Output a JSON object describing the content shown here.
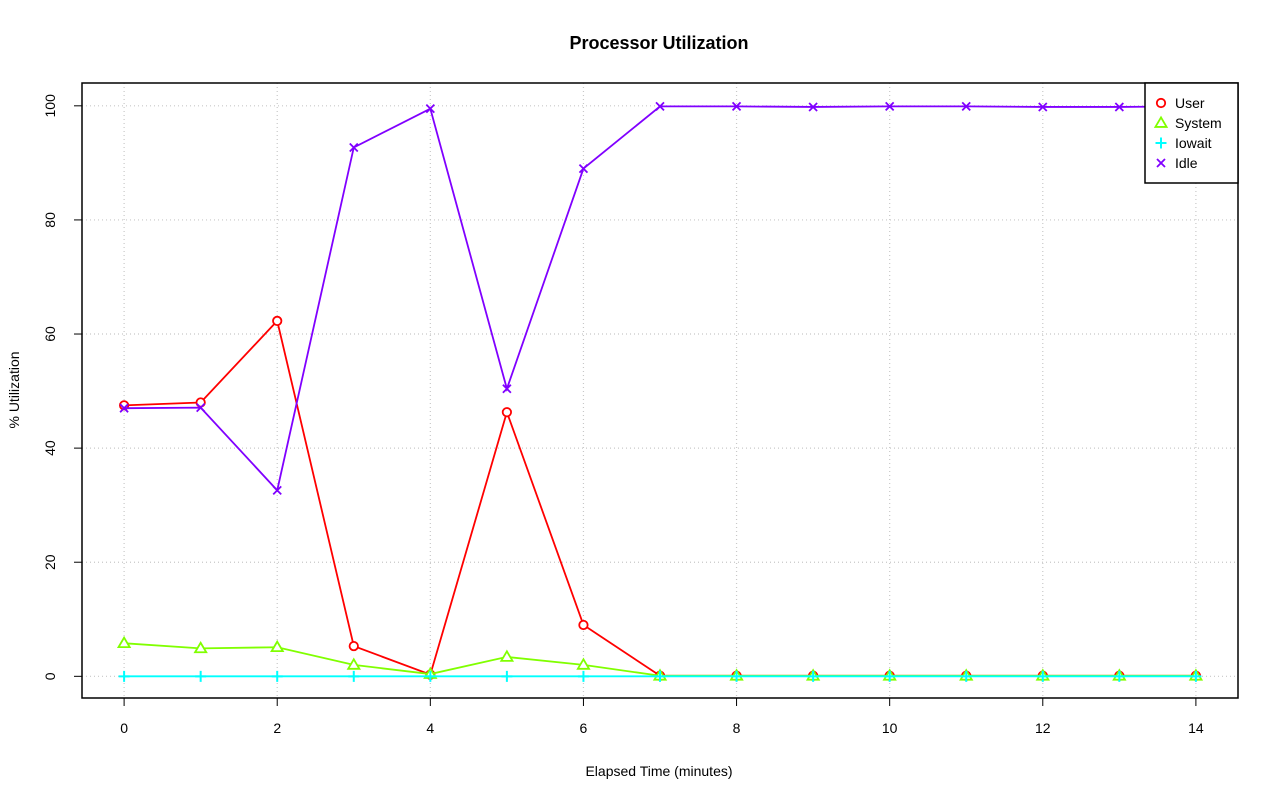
{
  "chart_data": {
    "type": "line",
    "title": "Processor Utilization",
    "xlabel": "Elapsed Time (minutes)",
    "ylabel": "% Utilization",
    "xlim": [
      -0.55,
      14.55
    ],
    "ylim": [
      -3.8,
      104
    ],
    "x_ticks": [
      "0",
      "2",
      "4",
      "6",
      "8",
      "10",
      "12",
      "14"
    ],
    "y_ticks": [
      "0",
      "20",
      "40",
      "60",
      "80",
      "100"
    ],
    "grid": true,
    "legend_position": "top-right",
    "x": [
      0,
      1,
      2,
      3,
      4,
      5,
      6,
      7,
      8,
      9,
      10,
      11,
      12,
      13,
      14
    ],
    "series": [
      {
        "name": "User",
        "color": "#ff0000",
        "marker": "circle",
        "values": [
          47.5,
          48.0,
          62.3,
          5.3,
          0.3,
          46.3,
          9.0,
          0.1,
          0.1,
          0.1,
          0.1,
          0.1,
          0.1,
          0.1,
          0.1
        ]
      },
      {
        "name": "System",
        "color": "#80ff00",
        "marker": "triangle",
        "values": [
          5.8,
          4.9,
          5.1,
          2.0,
          0.4,
          3.4,
          2.0,
          0.1,
          0.1,
          0.1,
          0.1,
          0.1,
          0.1,
          0.1,
          0.1
        ]
      },
      {
        "name": "Iowait",
        "color": "#00ffff",
        "marker": "plus",
        "values": [
          0,
          0,
          0,
          0,
          0,
          0,
          0,
          0,
          0,
          0,
          0,
          0,
          0,
          0,
          0
        ]
      },
      {
        "name": "Idle",
        "color": "#8000ff",
        "marker": "x",
        "values": [
          47.0,
          47.1,
          32.6,
          92.7,
          99.5,
          50.4,
          89.0,
          99.9,
          99.9,
          99.8,
          99.9,
          99.9,
          99.8,
          99.8,
          99.9
        ]
      }
    ]
  }
}
